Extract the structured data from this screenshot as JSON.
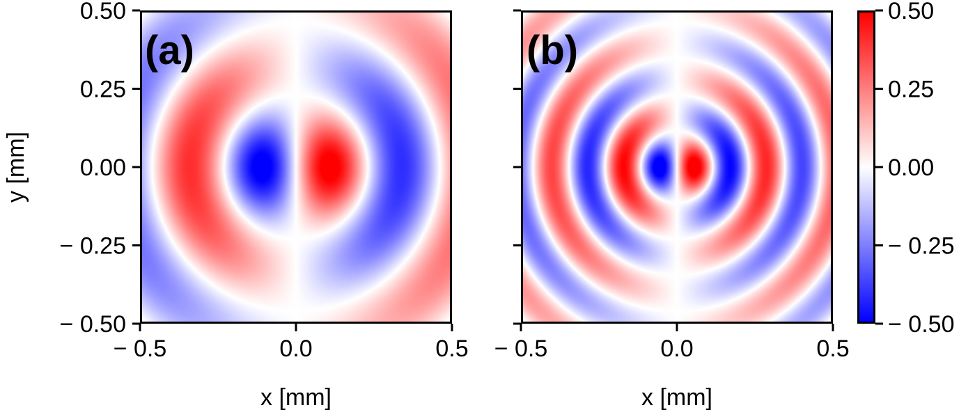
{
  "chart_data": [
    {
      "type": "heatmap",
      "panel_label": "(a)",
      "xlabel": "x [mm]",
      "ylabel": "y [mm]",
      "xlim": [
        -0.5,
        0.5
      ],
      "ylim": [
        -0.5,
        0.5
      ],
      "xticks": [
        -0.5,
        0.0,
        0.5
      ],
      "xtick_labels": [
        "− 0.5",
        "0.0",
        "0.5"
      ],
      "yticks": [
        0.5,
        0.25,
        0.0,
        -0.25,
        -0.5
      ],
      "ytick_labels": [
        "0.50",
        "0.25",
        "0.00",
        "− 0.25",
        "− 0.50"
      ],
      "field": "antisymmetric in x, concentric ring pattern",
      "field_params": {
        "ring_wavenumber_per_mm": 13.5,
        "envelope_decay_per_mm": 1.2
      },
      "colormap": "bwr"
    },
    {
      "type": "heatmap",
      "panel_label": "(b)",
      "xlabel": "x [mm]",
      "ylabel": "",
      "xlim": [
        -0.5,
        0.5
      ],
      "ylim": [
        -0.5,
        0.5
      ],
      "xticks": [
        -0.5,
        0.0,
        0.5
      ],
      "xtick_labels": [
        "− 0.5",
        "0.0",
        "0.5"
      ],
      "yticks": [
        0.5,
        0.25,
        0.0,
        -0.25,
        -0.5
      ],
      "ytick_labels": [],
      "field": "antisymmetric in x, concentric ring pattern",
      "field_params": {
        "ring_wavenumber_per_mm": 27,
        "envelope_decay_per_mm": 1.3
      },
      "colormap": "bwr"
    }
  ],
  "colorbar": {
    "range": [
      -0.5,
      0.5
    ],
    "ticks": [
      0.5,
      0.25,
      0.0,
      -0.25,
      -0.5
    ],
    "tick_labels": [
      "0.50",
      "0.25",
      "0.00",
      "− 0.25",
      "− 0.50"
    ],
    "colors": {
      "low": "#0000ff",
      "mid": "#ffffff",
      "high": "#ff0000"
    }
  }
}
